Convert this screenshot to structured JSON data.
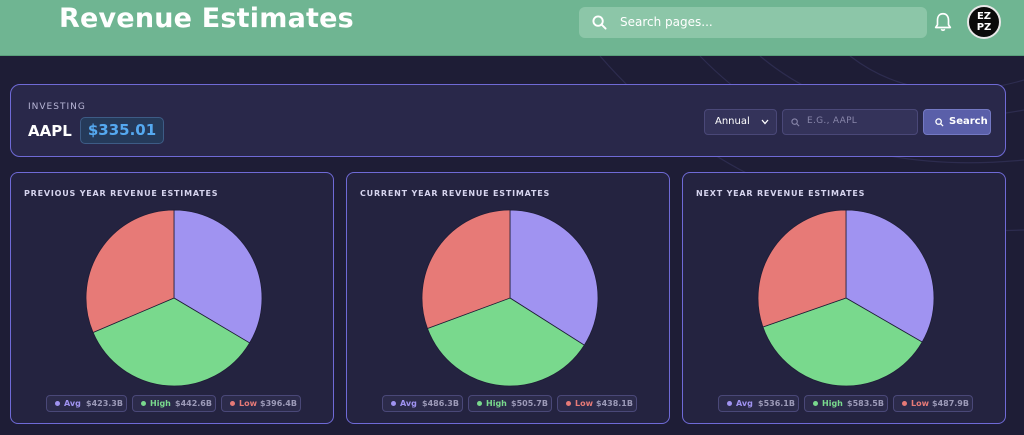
{
  "header": {
    "title": "Revenue Estimates",
    "search_placeholder": "Search pages...",
    "avatar_text": "EZ PZ"
  },
  "stock": {
    "label": "INVESTING",
    "ticker": "AAPL",
    "price": "$335.01",
    "period": "Annual",
    "input_placeholder": "E.G., AAPL",
    "search_label": "Search"
  },
  "colors": {
    "avg": "#a093f1",
    "high": "#79d98d",
    "low": "#e77a77",
    "accent_green": "#6fb592",
    "border_purple": "#6f6ad6"
  },
  "cards": [
    {
      "title": "PREVIOUS YEAR REVENUE ESTIMATES",
      "legend": [
        {
          "name": "Avg",
          "value": "$423.3B"
        },
        {
          "name": "High",
          "value": "$442.6B"
        },
        {
          "name": "Low",
          "value": "$396.4B"
        }
      ]
    },
    {
      "title": "CURRENT YEAR REVENUE ESTIMATES",
      "legend": [
        {
          "name": "Avg",
          "value": "$486.3B"
        },
        {
          "name": "High",
          "value": "$505.7B"
        },
        {
          "name": "Low",
          "value": "$438.1B"
        }
      ]
    },
    {
      "title": "NEXT YEAR REVENUE ESTIMATES",
      "legend": [
        {
          "name": "Avg",
          "value": "$536.1B"
        },
        {
          "name": "High",
          "value": "$583.5B"
        },
        {
          "name": "Low",
          "value": "$487.9B"
        }
      ]
    }
  ],
  "chart_data": [
    {
      "type": "pie",
      "title": "PREVIOUS YEAR REVENUE ESTIMATES",
      "categories": [
        "Avg",
        "High",
        "Low"
      ],
      "values": [
        423.3,
        442.6,
        396.4
      ],
      "unit": "B"
    },
    {
      "type": "pie",
      "title": "CURRENT YEAR REVENUE ESTIMATES",
      "categories": [
        "Avg",
        "High",
        "Low"
      ],
      "values": [
        486.3,
        505.7,
        438.1
      ],
      "unit": "B"
    },
    {
      "type": "pie",
      "title": "NEXT YEAR REVENUE ESTIMATES",
      "categories": [
        "Avg",
        "High",
        "Low"
      ],
      "values": [
        536.1,
        583.5,
        487.9
      ],
      "unit": "B"
    }
  ]
}
